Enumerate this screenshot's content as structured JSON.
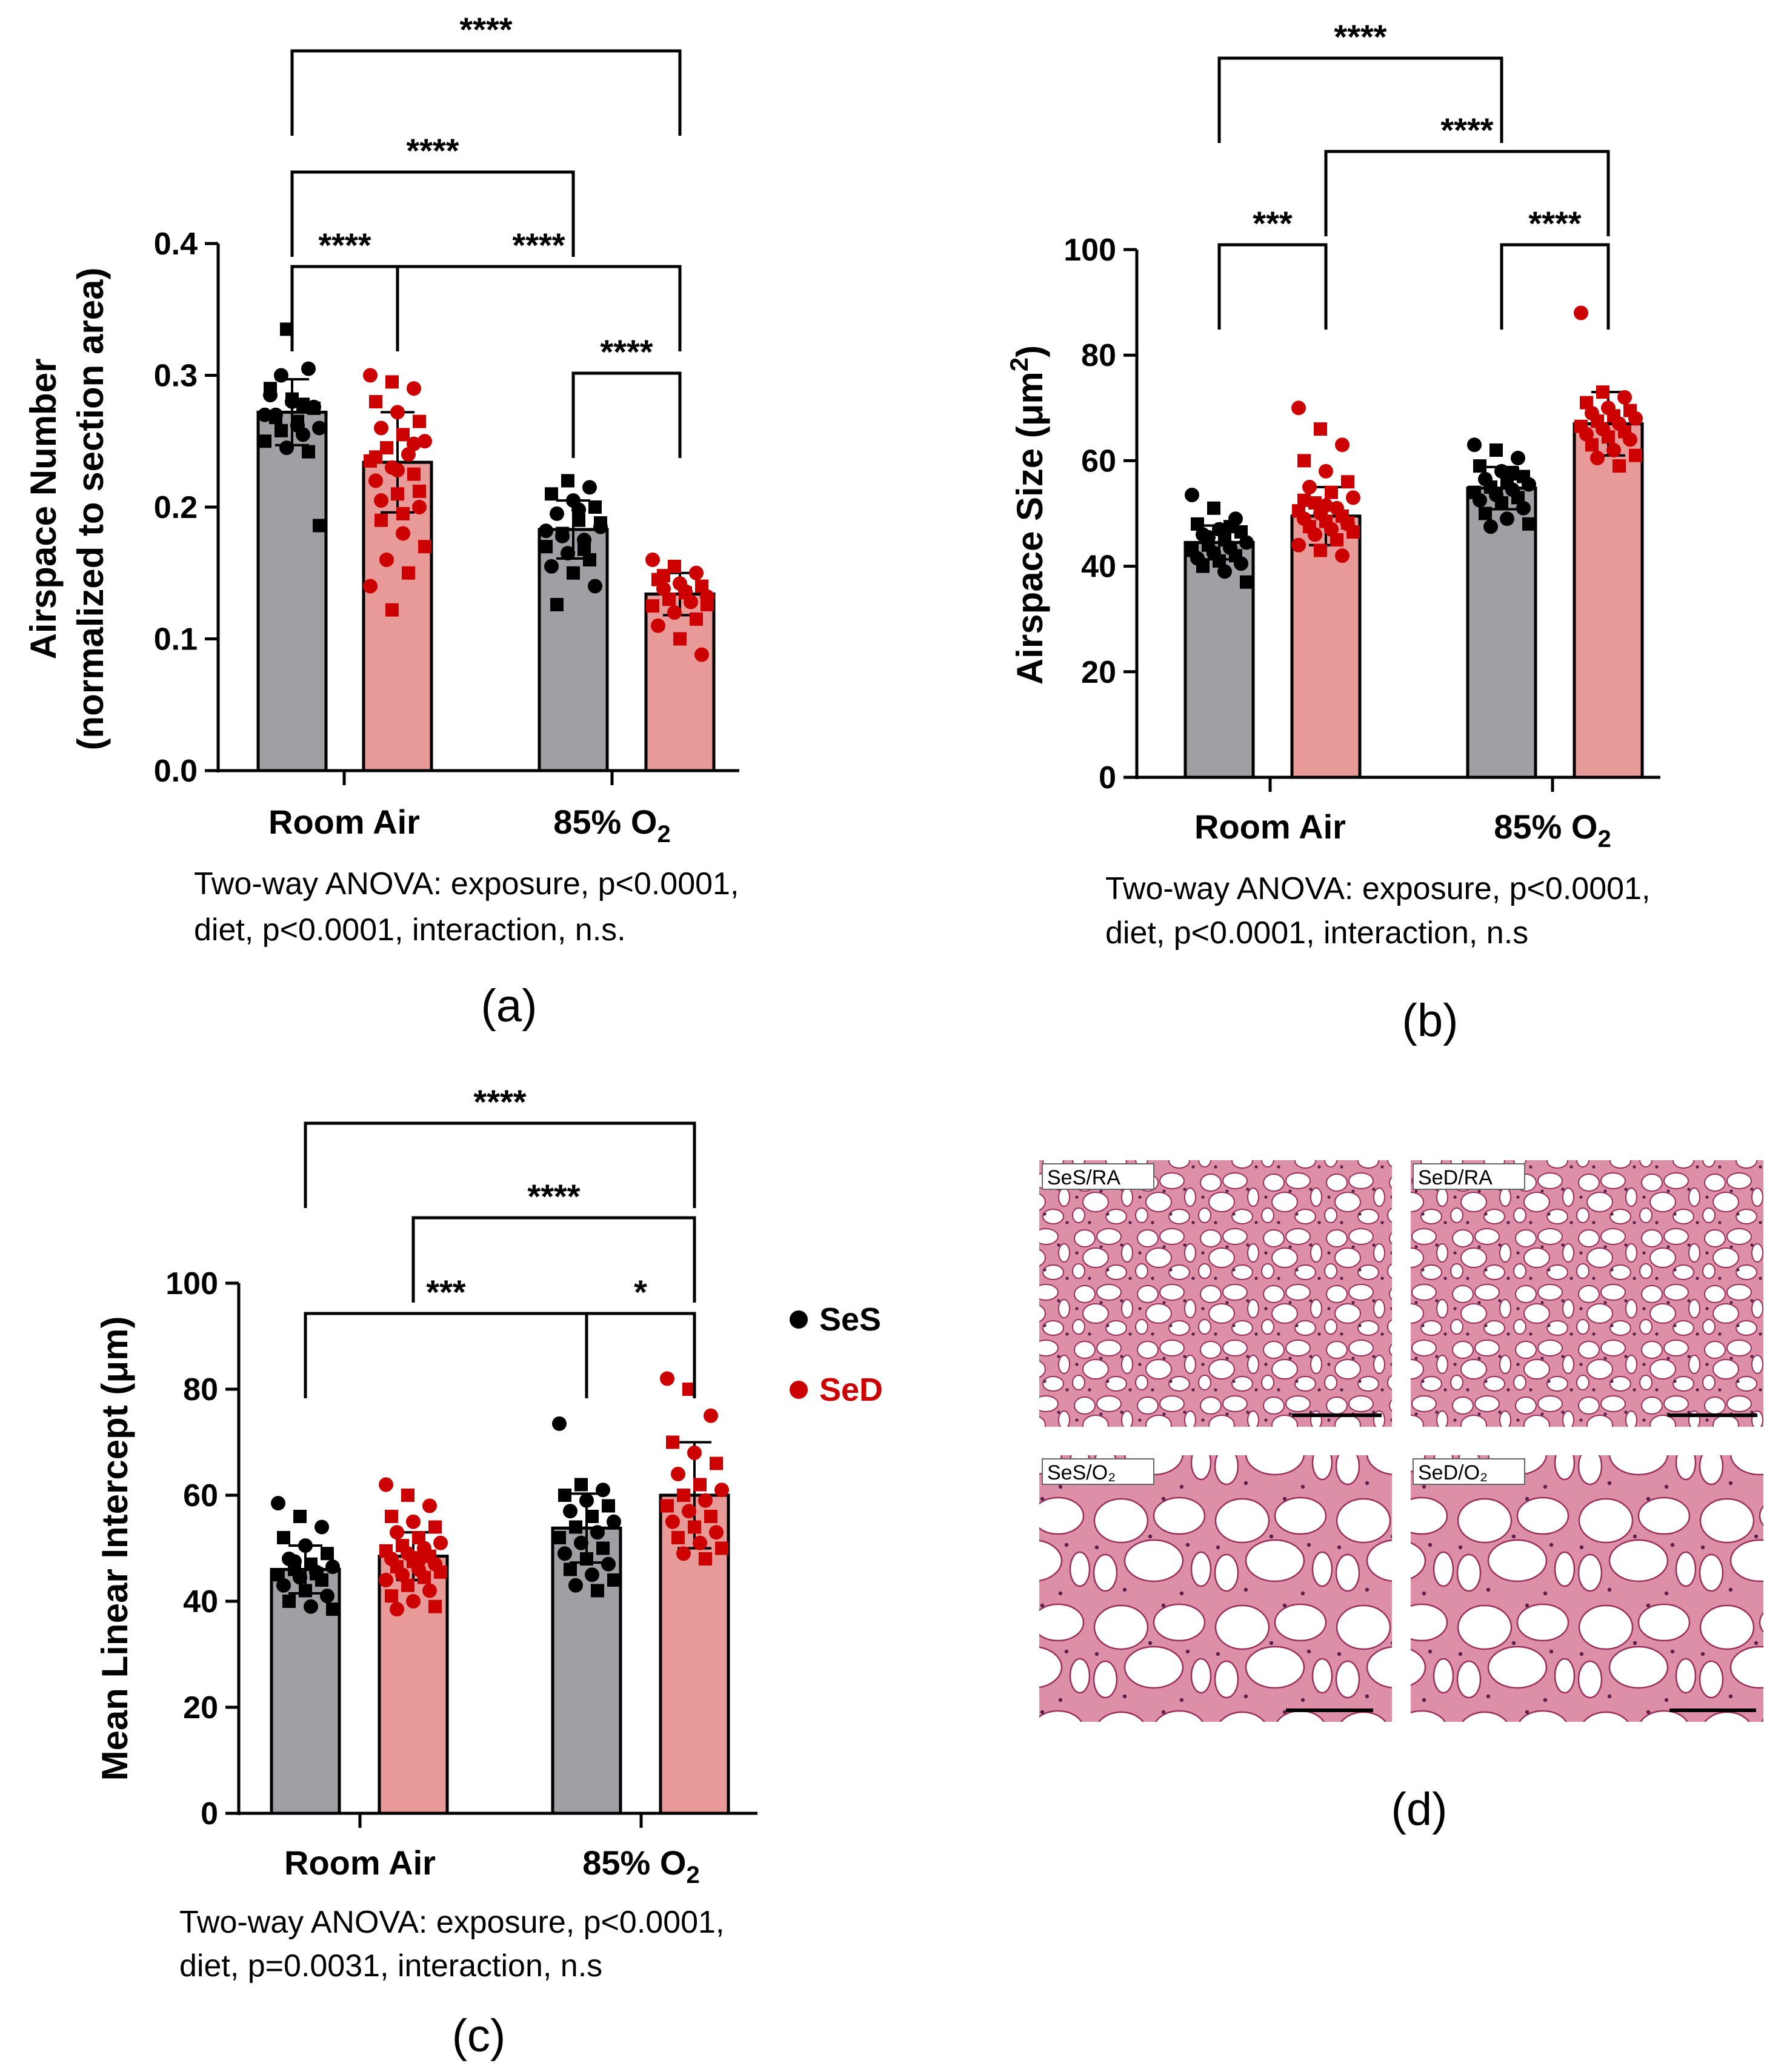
{
  "chart_data": [
    {
      "panel": "(a)",
      "type": "bar",
      "ylabel_line1": "Airspace Number",
      "ylabel_line2": "(normalized to section area)",
      "yticks": [
        "0.0",
        "0.1",
        "0.2",
        "0.3",
        "0.4"
      ],
      "ylim": [
        0,
        0.4
      ],
      "groups": [
        {
          "name": "Room Air"
        },
        {
          "name": "85% O",
          "sub": "2"
        }
      ],
      "series": [
        {
          "name": "SeS",
          "values": [
            0.272,
            0.183
          ],
          "errors": [
            0.025,
            0.022
          ]
        },
        {
          "name": "SeD",
          "values": [
            0.234,
            0.134
          ],
          "errors": [
            0.038,
            0.016
          ]
        }
      ],
      "points": [
        [
          [
            0.27,
            0.335,
            0.305,
            0.29,
            0.28,
            0.275,
            0.27,
            0.265,
            0.26,
            0.258,
            0.255,
            0.25,
            0.245,
            0.242,
            0.285,
            0.282,
            0.276,
            0.268,
            0.262,
            0.186,
            0.3,
            0.278
          ],
          [
            0.182,
            0.22,
            0.215,
            0.21,
            0.205,
            0.2,
            0.195,
            0.19,
            0.185,
            0.18,
            0.175,
            0.17,
            0.165,
            0.16,
            0.155,
            0.15,
            0.14,
            0.126,
            0.198,
            0.188,
            0.178,
            0.168
          ]
        ],
        [
          [
            0.3,
            0.295,
            0.29,
            0.28,
            0.272,
            0.265,
            0.26,
            0.255,
            0.25,
            0.245,
            0.24,
            0.235,
            0.23,
            0.225,
            0.22,
            0.21,
            0.2,
            0.19,
            0.18,
            0.17,
            0.16,
            0.15,
            0.14,
            0.122,
            0.248,
            0.238,
            0.228,
            0.212,
            0.205,
            0.195
          ],
          [
            0.16,
            0.155,
            0.15,
            0.145,
            0.142,
            0.14,
            0.138,
            0.135,
            0.132,
            0.13,
            0.128,
            0.125,
            0.12,
            0.115,
            0.11,
            0.1,
            0.088,
            0.148,
            0.136,
            0.126
          ]
        ]
      ],
      "comparisons": [
        {
          "from": [
            0,
            0
          ],
          "to": [
            1,
            1
          ],
          "stars": "****"
        },
        {
          "from": [
            0,
            0
          ],
          "to": [
            1,
            0
          ],
          "stars": "****"
        },
        {
          "from": [
            0,
            0
          ],
          "to": [
            0,
            1
          ],
          "stars": "****"
        },
        {
          "from": [
            0,
            1
          ],
          "to": [
            1,
            1
          ],
          "stars": "****"
        },
        {
          "from": [
            1,
            0
          ],
          "to": [
            1,
            1
          ],
          "stars": "****"
        }
      ],
      "note_line1": "Two-way ANOVA: exposure, p<0.0001,",
      "note_line2": "diet, p<0.0001, interaction, n.s."
    },
    {
      "panel": "(b)",
      "type": "bar",
      "ylabel_main": "Airspace Size (μm",
      "ylabel_sup": "2",
      "ylabel_end": ")",
      "yticks": [
        "0",
        "20",
        "40",
        "60",
        "80",
        "100"
      ],
      "ylim": [
        0,
        100
      ],
      "groups": [
        {
          "name": "Room Air"
        },
        {
          "name": "85% O",
          "sub": "2"
        }
      ],
      "series": [
        {
          "name": "SeS",
          "values": [
            44.5,
            54.8
          ],
          "errors": [
            3.2,
            4.0
          ]
        },
        {
          "name": "SeD",
          "values": [
            49.5,
            67.0
          ],
          "errors": [
            5.5,
            6.0
          ]
        }
      ],
      "points": [
        [
          [
            53.5,
            51,
            49,
            48,
            47,
            46.5,
            46,
            45,
            44.5,
            44,
            43.5,
            43,
            42.5,
            42,
            41.5,
            41,
            40.5,
            40,
            39,
            37,
            45.5,
            47.5
          ],
          [
            63,
            62,
            60.5,
            59,
            58,
            57,
            56.5,
            56,
            55.5,
            55,
            54.5,
            54,
            53.5,
            53,
            52.5,
            52,
            51,
            50,
            49,
            48,
            47.5,
            57.5
          ]
        ],
        [
          [
            70,
            66,
            63,
            60,
            58,
            56,
            55,
            54,
            53,
            52,
            51,
            50.5,
            50,
            49.5,
            49,
            48.5,
            48,
            47.5,
            47,
            46.5,
            46,
            45,
            44,
            43,
            42,
            52.5,
            51.5,
            48.2
          ],
          [
            88,
            73,
            72,
            71,
            70,
            69.5,
            69,
            68.5,
            68,
            67.5,
            67,
            66.5,
            66,
            65.5,
            65,
            64.5,
            64,
            63,
            62,
            61,
            60.5,
            59
          ]
        ]
      ],
      "comparisons": [
        {
          "from": [
            0,
            0
          ],
          "to": [
            1,
            0
          ],
          "stars": "****"
        },
        {
          "from": [
            0,
            1
          ],
          "to": [
            1,
            1
          ],
          "stars": "****"
        },
        {
          "from": [
            0,
            0
          ],
          "to": [
            0,
            1
          ],
          "stars": "***"
        },
        {
          "from": [
            1,
            0
          ],
          "to": [
            1,
            1
          ],
          "stars": "****"
        }
      ],
      "note_line1": "Two-way ANOVA: exposure, p<0.0001,",
      "note_line2": "diet, p<0.0001, interaction, n.s"
    },
    {
      "panel": "(c)",
      "type": "bar",
      "ylabel": "Mean Linear Intercept (μm)",
      "yticks": [
        "0",
        "20",
        "40",
        "60",
        "80",
        "100"
      ],
      "ylim": [
        0,
        100
      ],
      "groups": [
        {
          "name": "Room Air"
        },
        {
          "name": "85% O",
          "sub": "2"
        }
      ],
      "series": [
        {
          "name": "SeS",
          "values": [
            46.0,
            53.8
          ],
          "errors": [
            4.5,
            6.5
          ]
        },
        {
          "name": "SeD",
          "values": [
            48.5,
            60.0
          ],
          "errors": [
            4.5,
            10.0
          ]
        }
      ],
      "points": [
        [
          [
            58.5,
            56,
            54,
            52,
            50.5,
            49,
            48,
            47,
            46.5,
            46,
            45.5,
            45,
            44.5,
            44,
            43,
            42,
            41,
            40,
            39,
            38.5,
            47.5,
            45.2
          ],
          [
            73.5,
            62,
            61,
            60,
            59,
            58,
            57,
            56,
            55,
            54,
            53,
            52,
            51,
            50,
            49,
            48,
            47,
            46,
            45,
            44,
            43,
            42
          ]
        ],
        [
          [
            62,
            60,
            58,
            56,
            55,
            54,
            53,
            52,
            51,
            50.5,
            50,
            49.5,
            49,
            48.5,
            48,
            47.5,
            47,
            46.5,
            46,
            45.5,
            45,
            44.5,
            44,
            43,
            42,
            41,
            40,
            39,
            38.5,
            48.2
          ],
          [
            82,
            80,
            75,
            70,
            68,
            66,
            64,
            62,
            61,
            60,
            59,
            58,
            57,
            56,
            55,
            54,
            53,
            52,
            51,
            50,
            49,
            48
          ]
        ]
      ],
      "comparisons": [
        {
          "from": [
            0,
            0
          ],
          "to": [
            1,
            1
          ],
          "stars": "****"
        },
        {
          "from": [
            0,
            1
          ],
          "to": [
            1,
            1
          ],
          "stars": "****"
        },
        {
          "from": [
            0,
            0
          ],
          "to": [
            1,
            0
          ],
          "stars": "***"
        },
        {
          "from": [
            1,
            0
          ],
          "to": [
            1,
            1
          ],
          "stars": "*"
        }
      ],
      "note_line1": "Two-way ANOVA: exposure, p<0.0001,",
      "note_line2": "diet, p=0.0031, interaction, n.s"
    }
  ],
  "legend": [
    {
      "name": "SeS",
      "color": "#000000"
    },
    {
      "name": "SeD",
      "color": "#cc0000"
    }
  ],
  "micrographs": [
    {
      "label": "SeS/RA",
      "pattern": "small"
    },
    {
      "label": "SeD/RA",
      "pattern": "small"
    },
    {
      "label": "SeS/O₂",
      "pattern": "large"
    },
    {
      "label": "SeD/O₂",
      "pattern": "large"
    }
  ],
  "panel_d_label": "(d)",
  "colors": {
    "ses_bar": "#a0a0a4",
    "sed_bar": "#e89a98",
    "ses_point": "#000000",
    "sed_point": "#cc0000",
    "tissue": "#b8466e",
    "tissue_bg": "#dc8fa6"
  }
}
